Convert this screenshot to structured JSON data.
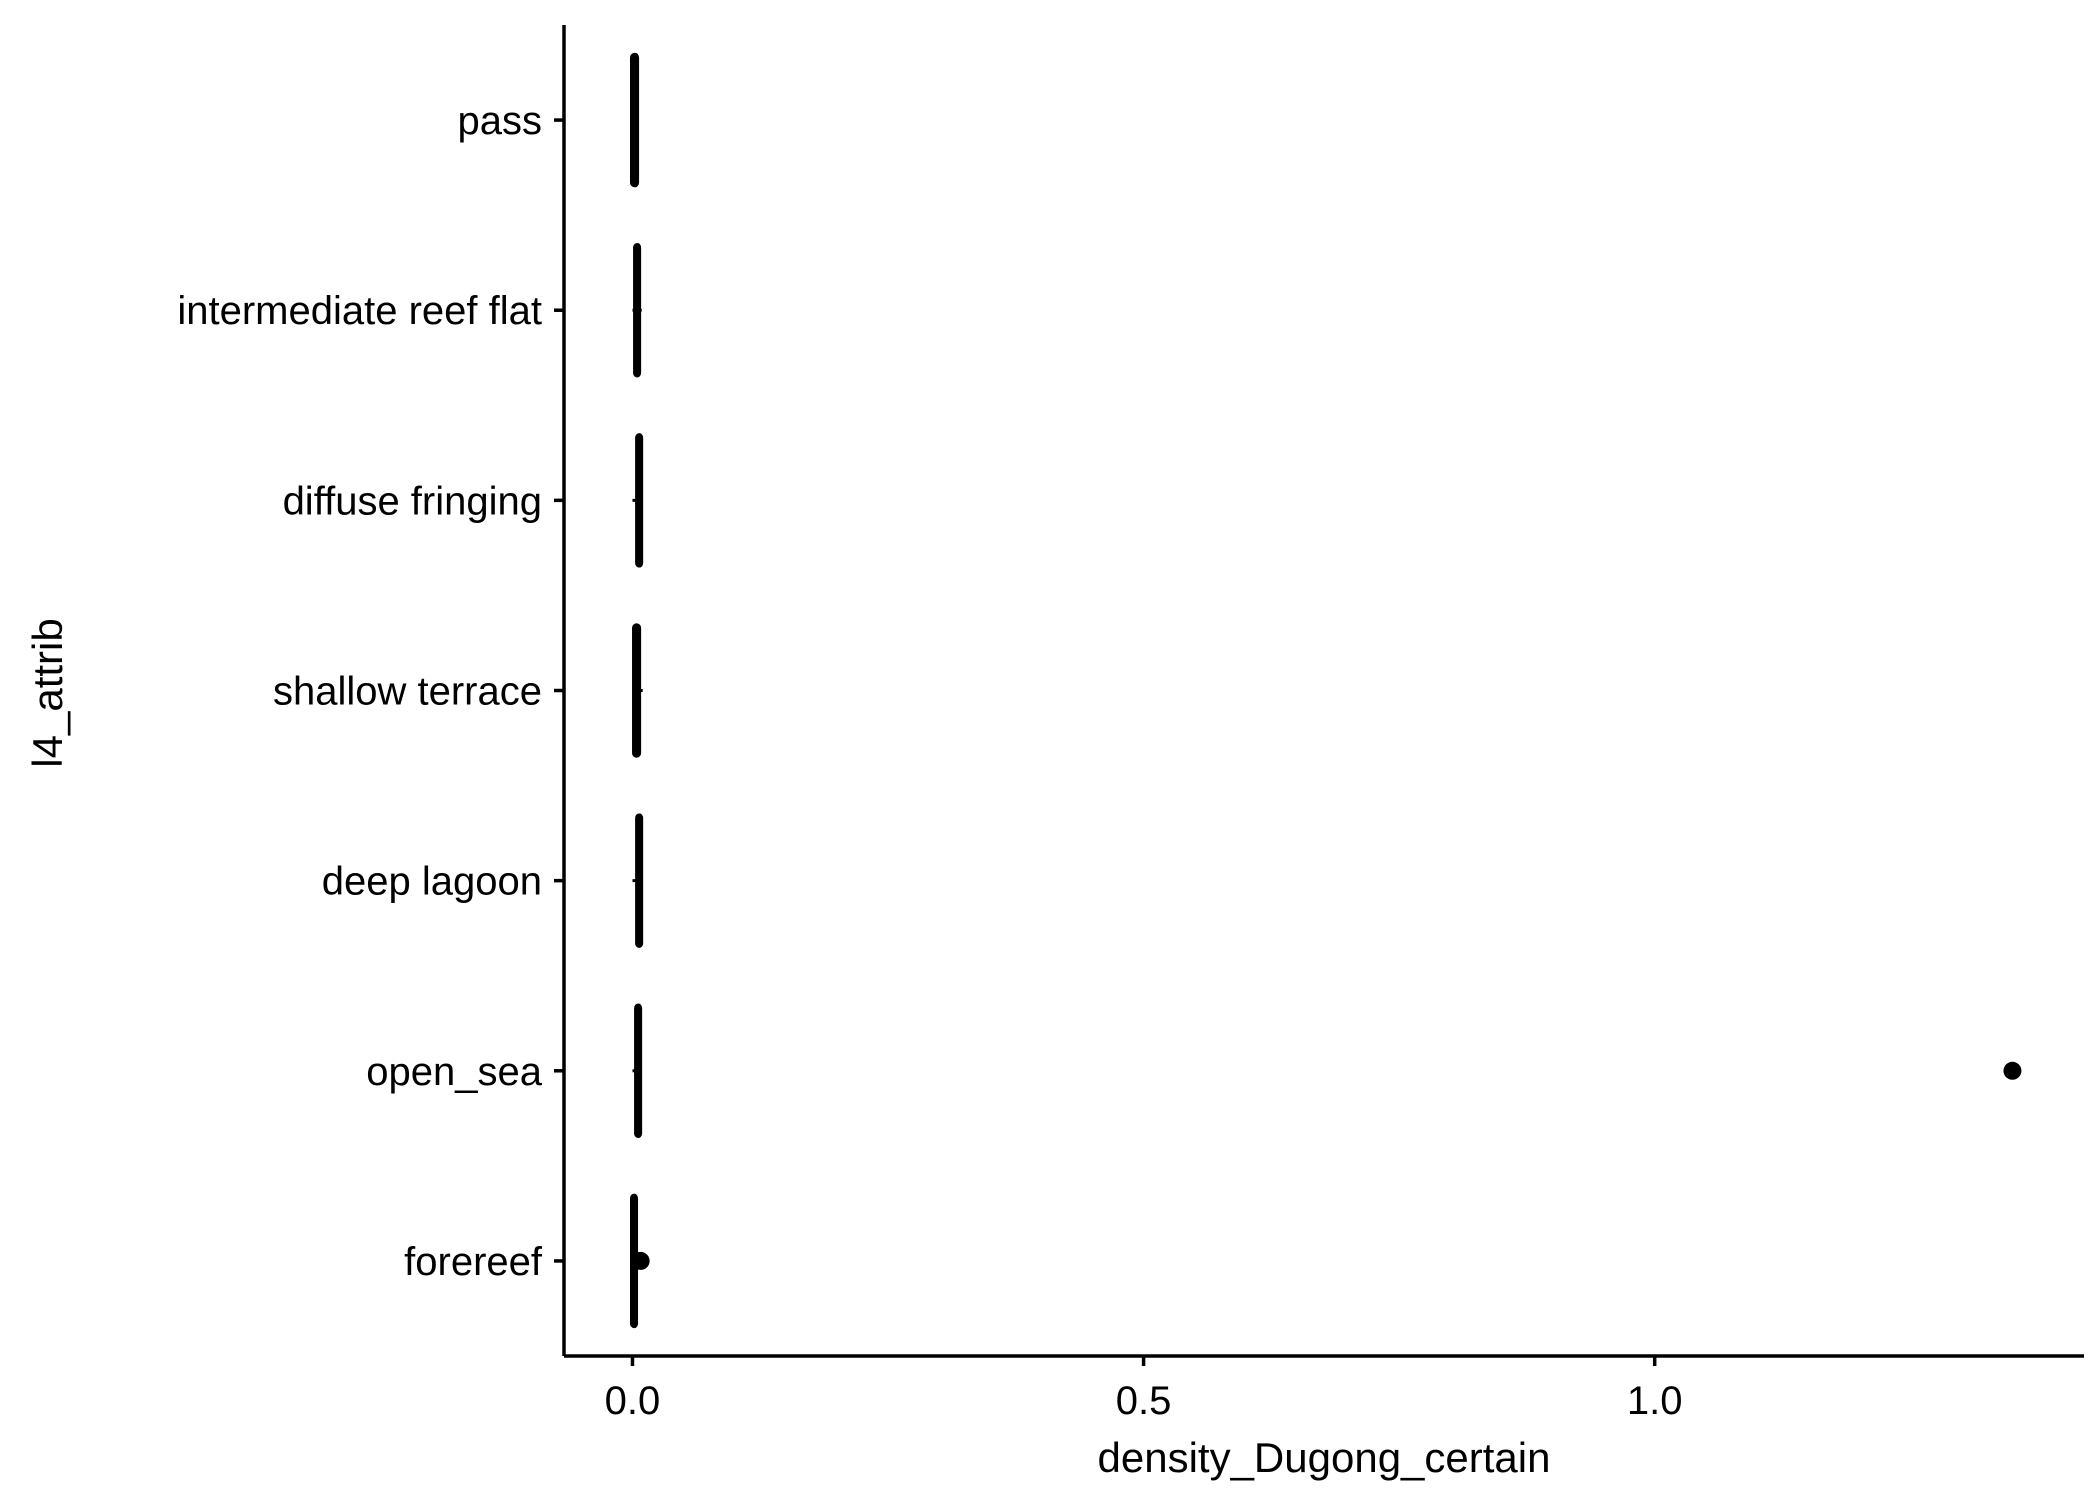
{
  "chart_data": {
    "type": "boxplot",
    "orientation": "horizontal",
    "xlabel": "density_Dugong_certain",
    "ylabel": "l4_attrib",
    "xlim": [
      -0.067,
      1.42
    ],
    "x_ticks": [
      {
        "value": 0.0,
        "label": "0.0"
      },
      {
        "value": 0.5,
        "label": "0.5"
      },
      {
        "value": 1.0,
        "label": "1.0"
      }
    ],
    "categories": [
      "pass",
      "intermediate reef flat",
      "diffuse fringing",
      "shallow terrace",
      "deep lagoon",
      "open_sea",
      "forereef"
    ],
    "boxes": [
      {
        "category": "pass",
        "min": 0,
        "q1": 0,
        "median": 0.003,
        "q3": 0.004,
        "max": 0.006,
        "outliers": []
      },
      {
        "category": "intermediate reef flat",
        "min": 0,
        "q1": 0.003,
        "median": 0.005,
        "q3": 0.006,
        "max": 0.009,
        "outliers": []
      },
      {
        "category": "diffuse fringing",
        "min": 0,
        "q1": 0.005,
        "median": 0.007,
        "q3": 0.008,
        "max": 0.009,
        "outliers": []
      },
      {
        "category": "shallow terrace",
        "min": 0,
        "q1": 0.002,
        "median": 0.004,
        "q3": 0.006,
        "max": 0.01,
        "outliers": []
      },
      {
        "category": "deep lagoon",
        "min": 0,
        "q1": 0.005,
        "median": 0.007,
        "q3": 0.008,
        "max": 0.009,
        "outliers": []
      },
      {
        "category": "open_sea",
        "min": 0,
        "q1": 0.004,
        "median": 0.006,
        "q3": 0.007,
        "max": 0.009,
        "outliers": [
          1.35
        ]
      },
      {
        "category": "forereef",
        "min": 0,
        "q1": 0,
        "median": 0.002,
        "q3": 0.003,
        "max": 0.005,
        "outliers": [
          0.008
        ]
      }
    ],
    "colors": {
      "stroke": "#000000",
      "background": "#ffffff"
    },
    "grid": false,
    "legend": "none"
  }
}
